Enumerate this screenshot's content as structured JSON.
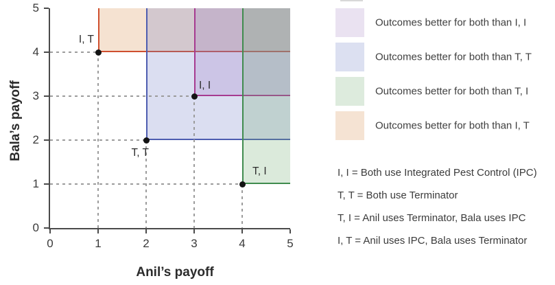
{
  "chart_data": {
    "type": "scatter",
    "title": "",
    "xlabel": "Anil’s payoff",
    "ylabel": "Bala’s payoff",
    "xlim": [
      0,
      5
    ],
    "ylim": [
      0,
      5
    ],
    "xticks": [
      "0",
      "1",
      "2",
      "3",
      "4",
      "5"
    ],
    "yticks": [
      "0",
      "1",
      "2",
      "3",
      "4",
      "5"
    ],
    "grid": "dashed guide lines from each axis to each point",
    "legend_position": "right",
    "points": [
      {
        "id": "IT",
        "label": "I, T",
        "x": 1,
        "y": 4,
        "line_color": "#cf4f2e",
        "fill": "rgba(214,140,70,0.25)",
        "label_pos": "above-left",
        "region": "x>=1 and y>=4"
      },
      {
        "id": "TT",
        "label": "T, T",
        "x": 2,
        "y": 2,
        "line_color": "#4d5cb0",
        "fill": "rgba(110,125,200,0.25)",
        "label_pos": "below-left",
        "region": "x>=2 and y>=2"
      },
      {
        "id": "II",
        "label": "I, I",
        "x": 3,
        "y": 3,
        "line_color": "#a63a90",
        "fill": "rgba(150,108,190,0.22)",
        "label_pos": "above-right",
        "region": "x>=3 and y>=3"
      },
      {
        "id": "TI",
        "label": "T, I",
        "x": 4,
        "y": 1,
        "line_color": "#3f8b4e",
        "fill": "rgba(110,170,110,0.25)",
        "label_pos": "above-right",
        "region": "x>=4 and y>=1"
      }
    ],
    "legend": [
      {
        "label": "Outcomes better for both than I, I",
        "swatch": "#EAE2F1",
        "point_id": "II"
      },
      {
        "label": "Outcomes better for both than T, T",
        "swatch": "#DCE0F1",
        "point_id": "TT"
      },
      {
        "label": "Outcomes better for both than T, I",
        "swatch": "#DDEBDD",
        "point_id": "TI"
      },
      {
        "label": "Outcomes better for both than I, T",
        "swatch": "#F5E3D3",
        "point_id": "IT"
      }
    ],
    "notes": [
      "I, I = Both use Integrated Pest Control (IPC)",
      "T, T = Both use Terminator",
      "T, I = Anil uses Terminator, Bala uses IPC",
      "I, T = Anil uses IPC, Bala uses Terminator"
    ],
    "colors": {
      "axis": "#4a4a4a",
      "dashed_guides": "#9b9b9b",
      "point_dot": "#141414",
      "text": "#3b3b3b"
    }
  }
}
